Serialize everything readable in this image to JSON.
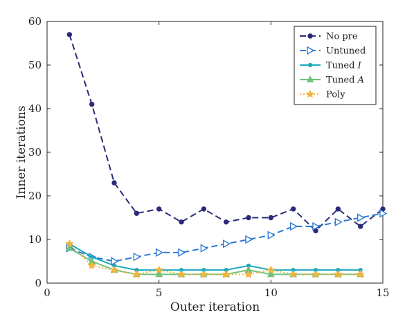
{
  "chart_data": {
    "type": "line",
    "xlabel": "Outer iteration",
    "ylabel": "Inner iterations",
    "xlim": [
      0,
      15
    ],
    "ylim": [
      0,
      60
    ],
    "xticks": [
      0,
      5,
      10,
      15
    ],
    "yticks": [
      0,
      10,
      20,
      30,
      40,
      50,
      60
    ],
    "grid": false,
    "legend_position": "top-right",
    "series": [
      {
        "name": "No pre",
        "color": "#2b2a7a",
        "line_style": "dashed",
        "marker": "circle",
        "x": [
          1,
          2,
          3,
          4,
          5,
          6,
          7,
          8,
          9,
          10,
          11,
          12,
          13,
          14,
          15
        ],
        "y": [
          57,
          41,
          23,
          16,
          17,
          14,
          17,
          14,
          15,
          15,
          17,
          12,
          17,
          13,
          17
        ]
      },
      {
        "name": "Untuned",
        "color": "#2b78d4",
        "line_style": "dashed",
        "marker": "triangle-right",
        "x": [
          1,
          2,
          3,
          4,
          5,
          6,
          7,
          8,
          9,
          10,
          11,
          12,
          13,
          14,
          15
        ],
        "y": [
          8,
          6,
          5,
          6,
          7,
          7,
          8,
          9,
          10,
          11,
          13,
          13,
          14,
          15,
          16
        ]
      },
      {
        "name": "Tuned I",
        "label_main": "Tuned ",
        "label_italic": "I",
        "color": "#1aa8bf",
        "line_style": "solid",
        "marker": "dot",
        "x": [
          1,
          2,
          3,
          4,
          5,
          6,
          7,
          8,
          9,
          10,
          11,
          12,
          13,
          14
        ],
        "y": [
          9,
          6,
          4,
          3,
          3,
          3,
          3,
          3,
          4,
          3,
          3,
          3,
          3,
          3
        ]
      },
      {
        "name": "Tuned A",
        "label_main": "Tuned ",
        "label_italic": "A",
        "color": "#6fc27a",
        "line_style": "solid",
        "marker": "triangle-up",
        "x": [
          1,
          2,
          3,
          4,
          5,
          6,
          7,
          8,
          9,
          10,
          11,
          12,
          13,
          14
        ],
        "y": [
          8,
          5,
          3,
          2,
          2,
          2,
          2,
          2,
          3,
          2,
          2,
          2,
          2,
          2
        ]
      },
      {
        "name": "Poly",
        "color": "#f2b43c",
        "line_style": "dotted",
        "marker": "star",
        "x": [
          1,
          2,
          3,
          4,
          5,
          6,
          7,
          8,
          9,
          10,
          11,
          12,
          13,
          14
        ],
        "y": [
          9,
          4,
          3,
          2,
          3,
          2,
          2,
          2,
          2,
          3,
          2,
          2,
          2,
          2
        ]
      }
    ]
  }
}
